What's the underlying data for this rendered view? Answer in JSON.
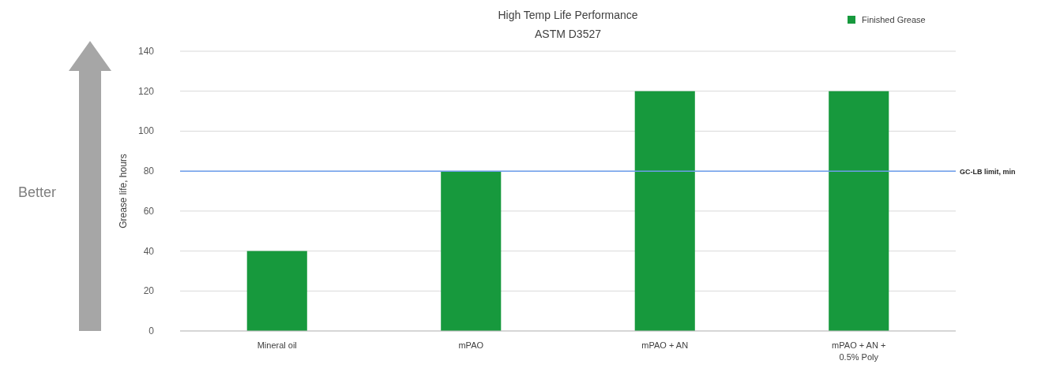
{
  "chart_data": {
    "type": "bar",
    "title": "High Temp Life Performance",
    "subtitle": "ASTM D3527",
    "ylabel": "Grease life, hours",
    "categories": [
      "Mineral oil",
      "mPAO",
      "mPAO + AN",
      "mPAO + AN + 0.5% Poly"
    ],
    "series": [
      {
        "name": "Finished Grease",
        "color": "#17993d",
        "values": [
          40,
          80,
          120,
          120
        ]
      }
    ],
    "ylim": [
      0,
      140
    ],
    "yticks": [
      0,
      20,
      40,
      60,
      80,
      100,
      120,
      140
    ],
    "grid": "y",
    "legend": "top right",
    "ref_lines": [
      {
        "axis": "y",
        "value": 80,
        "label": "GC-LB limit, min",
        "color": "#6d9eeb"
      }
    ],
    "annotations": [
      "Better"
    ]
  }
}
